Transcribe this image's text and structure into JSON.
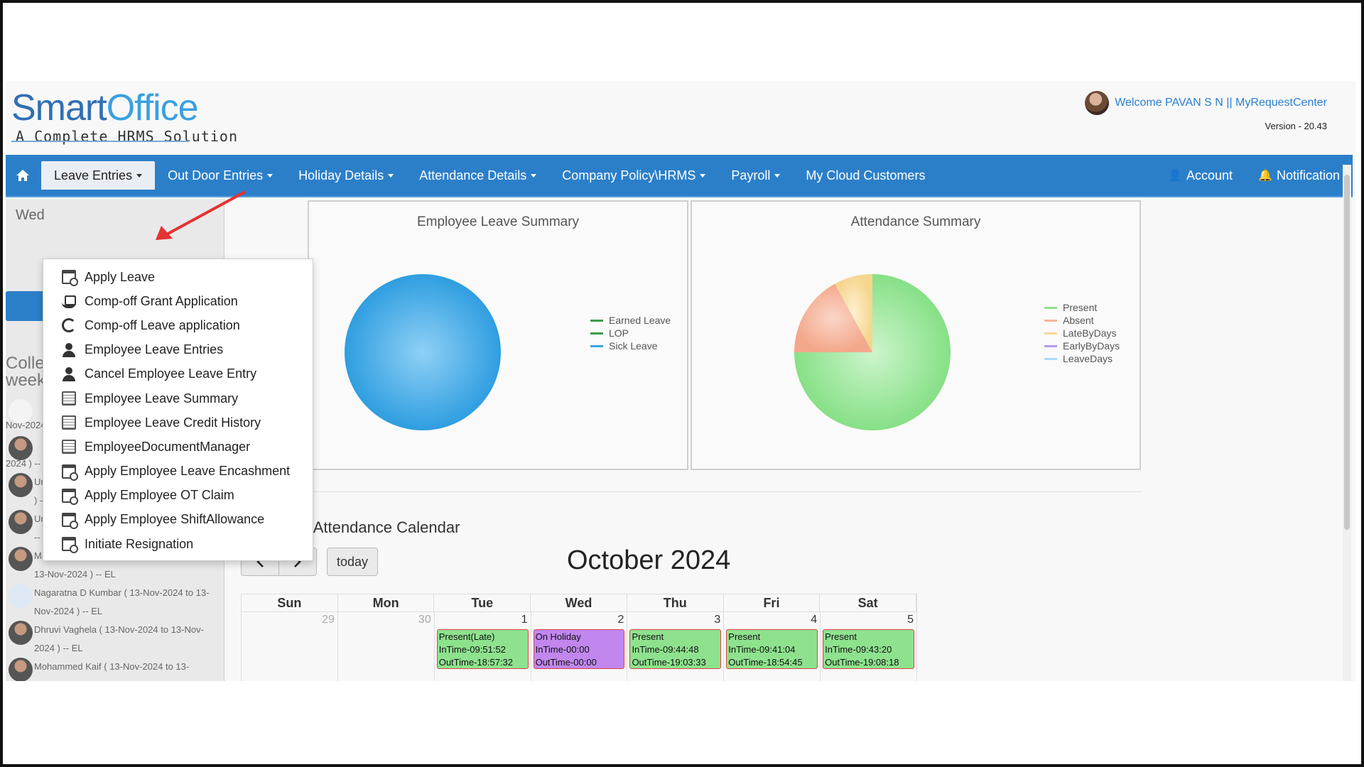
{
  "brand": {
    "name_part1": "Smart",
    "name_part2": "Office",
    "tagline": "A Complete HRMS Solution"
  },
  "header": {
    "welcome": "Welcome PAVAN S N || MyRequestCenter",
    "version": "Version - 20.43"
  },
  "navbar": {
    "items": [
      {
        "label": "Leave Entries"
      },
      {
        "label": "Out Door Entries"
      },
      {
        "label": "Holiday Details"
      },
      {
        "label": "Attendance Details"
      },
      {
        "label": "Company Policy\\HRMS"
      },
      {
        "label": "Payroll"
      },
      {
        "label": "My Cloud Customers"
      }
    ],
    "account": "Account",
    "notification": "Notification"
  },
  "dropdown": {
    "items": [
      {
        "label": "Apply Leave",
        "icon": "calendar-icon"
      },
      {
        "label": "Comp-off Grant Application",
        "icon": "hand-icon"
      },
      {
        "label": "Comp-off Leave application",
        "icon": "cycle-icon"
      },
      {
        "label": "Employee Leave Entries",
        "icon": "person-icon"
      },
      {
        "label": "Cancel Employee Leave Entry",
        "icon": "person-icon"
      },
      {
        "label": "Employee Leave Summary",
        "icon": "document-icon"
      },
      {
        "label": "Employee Leave Credit History",
        "icon": "document-icon"
      },
      {
        "label": "EmployeeDocumentManager",
        "icon": "document-icon"
      },
      {
        "label": "Apply Employee Leave Encashment",
        "icon": "calendar-icon"
      },
      {
        "label": "Apply Employee OT Claim",
        "icon": "calendar-icon"
      },
      {
        "label": "Apply Employee ShiftAllowance",
        "icon": "calendar-icon"
      },
      {
        "label": "Initiate Resignation",
        "icon": "calendar-icon"
      }
    ]
  },
  "sidebar": {
    "date_partial": "Wed",
    "heading_line1": "Colle",
    "heading_line2": "week",
    "colleagues": [
      {
        "text": "Nov-2024"
      },
      {
        "text": "2024 ) --"
      },
      {
        "text": "Ummehabiba ( 13-Nov-2024 to 13-Nov-2024 ) -- EL"
      },
      {
        "text": "Uma Bellad ( 13-Nov-2024 to 13-Nov-2024 ) -- EL"
      },
      {
        "text": "Mahmadaslam M dandin ( 13-Nov-2024 to 13-Nov-2024 ) -- EL"
      },
      {
        "text": "Nagaratna D Kumbar ( 13-Nov-2024 to 13-Nov-2024 ) -- EL"
      },
      {
        "text": "Dhruvi Vaghela ( 13-Nov-2024 to 13-Nov-2024 ) -- EL"
      },
      {
        "text": "Mohammed Kaif ( 13-Nov-2024 to 13-"
      }
    ]
  },
  "leave_summary": {
    "title": "Employee Leave Summary",
    "legend": [
      "Earned Leave",
      "LOP",
      "Sick Leave"
    ],
    "colors": [
      "#3e9a4b",
      "#3e9a4b",
      "#3aa4e3"
    ],
    "values": [
      0,
      0,
      1
    ]
  },
  "attendance_summary": {
    "title": "Attendance Summary",
    "legend": [
      "Present",
      "Absent",
      "LateByDays",
      "EarlyByDays",
      "LeaveDays"
    ],
    "colors": [
      "#8fe28f",
      "#f6b39b",
      "#f7d99a",
      "#b49af0",
      "#a6dcf4"
    ],
    "values": [
      0.75,
      0.17,
      0.08,
      0,
      0
    ]
  },
  "calendar": {
    "title": "Employee Attendance Calendar",
    "today_label": "today",
    "month": "October 2024",
    "weekdays": [
      "Sun",
      "Mon",
      "Tue",
      "Wed",
      "Thu",
      "Fri",
      "Sat"
    ],
    "days": [
      {
        "num": "29",
        "other": true,
        "event": null
      },
      {
        "num": "30",
        "other": true,
        "event": null
      },
      {
        "num": "1",
        "event": {
          "status": "Present(Late)",
          "in": "InTime-09:51:52",
          "out": "OutTime-18:57:32",
          "kind": "present"
        }
      },
      {
        "num": "2",
        "event": {
          "status": "On Holiday",
          "in": "InTime-00:00",
          "out": "OutTime-00:00",
          "kind": "holiday"
        }
      },
      {
        "num": "3",
        "event": {
          "status": "Present",
          "in": "InTime-09:44:48",
          "out": "OutTime-19:03:33",
          "kind": "present"
        }
      },
      {
        "num": "4",
        "event": {
          "status": "Present",
          "in": "InTime-09:41:04",
          "out": "OutTime-18:54:45",
          "kind": "present"
        }
      },
      {
        "num": "5",
        "event": {
          "status": "Present",
          "in": "InTime-09:43:20",
          "out": "OutTime-19:08:18",
          "kind": "present"
        }
      }
    ]
  }
}
